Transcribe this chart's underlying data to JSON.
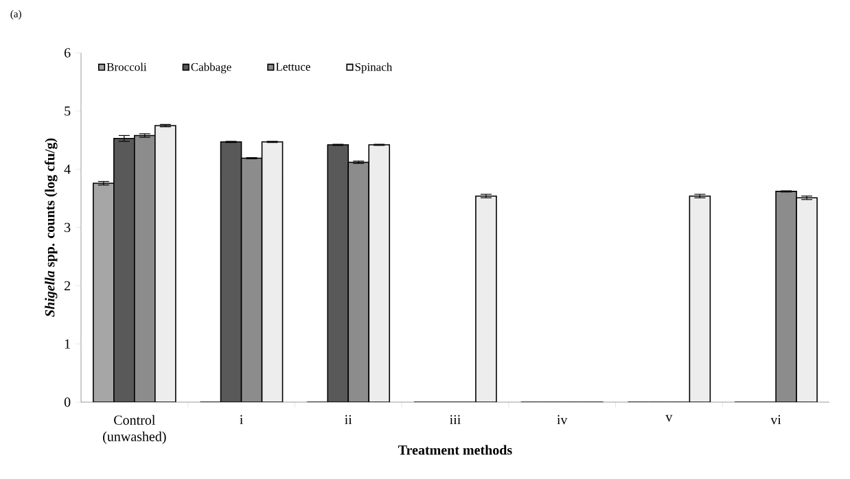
{
  "chart_data": {
    "type": "bar",
    "title": "(a)",
    "xlabel": "Treatment methods",
    "ylabel": "*Shigella* spp. counts  (log cfu/g)",
    "categories": [
      "Control (unwashed)",
      "i",
      "ii",
      "iii",
      "iv",
      "v",
      "vi"
    ],
    "series": [
      {
        "name": "Broccoli",
        "color": "#a6a6a6",
        "values": [
          3.76,
          0,
          0,
          0,
          0,
          0,
          0
        ],
        "errors": [
          0.03,
          null,
          null,
          null,
          null,
          null,
          null
        ]
      },
      {
        "name": "Cabbage",
        "color": "#595959",
        "values": [
          4.53,
          4.47,
          4.42,
          0,
          0,
          0,
          0
        ],
        "errors": [
          0.05,
          0.01,
          0.01,
          null,
          null,
          null,
          null
        ]
      },
      {
        "name": "Lettuce",
        "color": "#8c8c8c",
        "values": [
          4.58,
          4.19,
          4.12,
          0,
          0,
          0,
          3.62
        ],
        "errors": [
          0.03,
          0.01,
          0.02,
          null,
          null,
          null,
          0.01
        ]
      },
      {
        "name": "Spinach",
        "color": "#ededed",
        "values": [
          4.75,
          4.47,
          4.42,
          3.54,
          0,
          3.54,
          3.51
        ],
        "errors": [
          0.02,
          0.01,
          0.01,
          0.03,
          null,
          0.03,
          0.03
        ]
      }
    ],
    "ylim": [
      0,
      6
    ],
    "yticks": [
      0,
      1,
      2,
      3,
      4,
      5,
      6
    ],
    "grid": false,
    "legend": "top left"
  }
}
